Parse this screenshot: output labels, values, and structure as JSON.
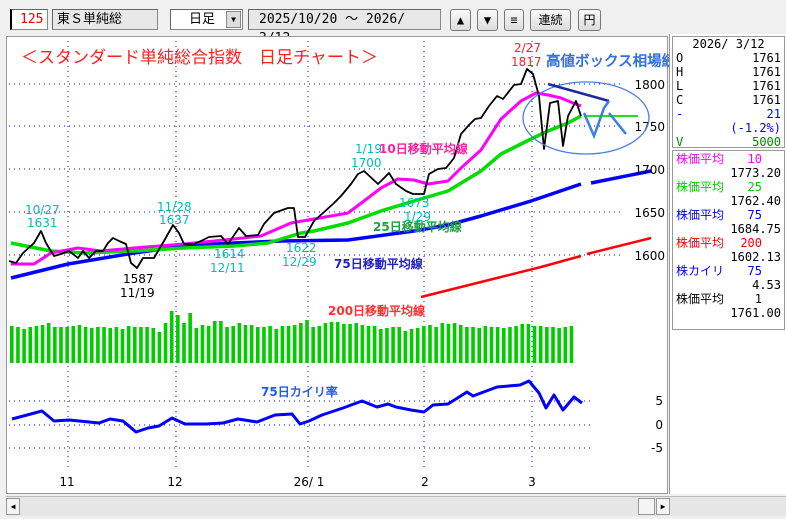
{
  "toolbar": {
    "code": "125",
    "name": "東Ｓ単純総",
    "period": "日足",
    "date_range": "2025/10/20 ～ 2026/ 3/12",
    "up_label": "▲",
    "down_label": "▼",
    "menu_label": "≡",
    "continuous_label": "連続",
    "yen_label": "円"
  },
  "chart": {
    "title": "＜スタンダード単純総合指数　日足チャート＞",
    "comment": "高値ボックス相場続くか",
    "y_ticks": [
      "1800",
      "1750",
      "1700",
      "1650",
      "1600"
    ],
    "kairi_ticks": [
      "5",
      "0",
      "-5"
    ],
    "x_ticks": [
      "11",
      "12",
      "26/ 1",
      "2",
      "3"
    ],
    "annotations": [
      {
        "date": "10/27",
        "value": "1631"
      },
      {
        "date": "11/28",
        "value": "1637"
      },
      {
        "date": "11/19",
        "value": "1587"
      },
      {
        "date": "12/11",
        "value": "1614"
      },
      {
        "date": "12/29",
        "value": "1622"
      },
      {
        "date": "1/19",
        "value": "1700"
      },
      {
        "date": "1/29",
        "value": "1673"
      },
      {
        "date": "2/27",
        "value": "1817"
      }
    ],
    "ma_labels": {
      "ma10": "10日移動平均線",
      "ma25": "25日移動平均線",
      "ma75": "75日移動平均線",
      "ma200": "200日移動平均線",
      "kairi": "75日カイリ率"
    },
    "colors": {
      "price": "#000000",
      "ma10": "#ff00ff",
      "ma25": "#00dd00",
      "ma75": "#0000ff",
      "ma200": "#ff0000",
      "volume": "#00cc00",
      "kairi": "#0000ff",
      "annotation": "#00bbbb"
    }
  },
  "side": {
    "date": "2026/ 3/12",
    "ohlc": [
      {
        "k": "O",
        "v": "1761"
      },
      {
        "k": "H",
        "v": "1761"
      },
      {
        "k": "L",
        "v": "1761"
      },
      {
        "k": "C",
        "v": "1761"
      }
    ],
    "change_label": "-",
    "change": "21",
    "change_pct": "(-1.2%)",
    "volume_label": "V",
    "volume": "5000",
    "indicators": [
      {
        "label": "株価平均",
        "period": "10",
        "value": "1773.20",
        "color": "#ff00ff"
      },
      {
        "label": "株価平均",
        "period": "25",
        "value": "1762.40",
        "color": "#00cc00"
      },
      {
        "label": "株価平均",
        "period": "75",
        "value": "1684.75",
        "color": "#0000ff"
      },
      {
        "label": "株価平均",
        "period": "200",
        "value": "1602.13",
        "color": "#ff0000"
      },
      {
        "label": "株カイリ",
        "period": "75",
        "value": "4.53",
        "color": "#0000ff"
      },
      {
        "label": "株価平均",
        "period": "1",
        "value": "1761.00",
        "color": "#000000"
      }
    ]
  }
}
